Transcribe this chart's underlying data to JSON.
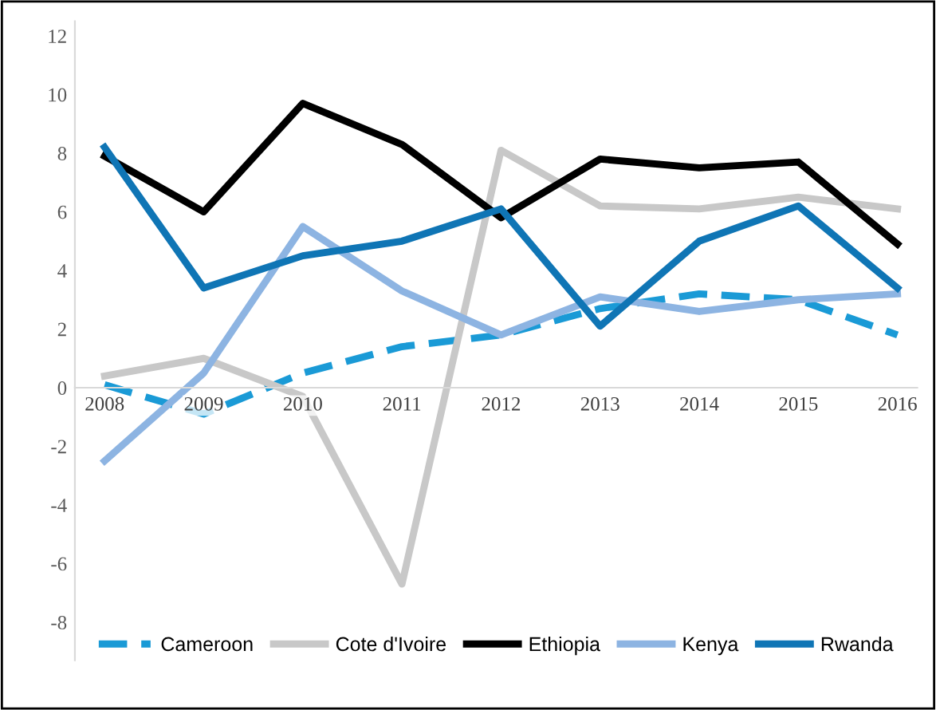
{
  "chart_data": {
    "type": "line",
    "categories": [
      "2008",
      "2009",
      "2010",
      "2011",
      "2012",
      "2013",
      "2014",
      "2015",
      "2016"
    ],
    "ylim": [
      -9.3,
      12.5
    ],
    "yticks": [
      -8,
      -6,
      -4,
      -2,
      0,
      2,
      4,
      6,
      8,
      10,
      12
    ],
    "grid": false,
    "legend": "bottom",
    "marker": "none",
    "series": [
      {
        "name": "Cameroon",
        "color": "#1a9ad6",
        "line_style": "dashed",
        "values": [
          0.1,
          -0.9,
          0.5,
          1.4,
          1.8,
          2.7,
          3.2,
          3.0,
          1.8
        ]
      },
      {
        "name": "Cote d'Ivoire",
        "color": "#c8c8c8",
        "values": [
          0.4,
          1.0,
          -0.3,
          -6.7,
          8.1,
          6.2,
          6.1,
          6.5,
          6.1
        ]
      },
      {
        "name": "Ethiopia",
        "color": "#000000",
        "values": [
          7.9,
          6.0,
          9.7,
          8.3,
          5.8,
          7.8,
          7.5,
          7.7,
          4.9
        ]
      },
      {
        "name": "Kenya",
        "color": "#8db4e2",
        "values": [
          -2.5,
          0.5,
          5.5,
          3.3,
          1.8,
          3.1,
          2.6,
          3.0,
          3.2
        ]
      },
      {
        "name": "Rwanda",
        "color": "#0f75b5",
        "values": [
          8.2,
          3.4,
          4.5,
          5.0,
          6.1,
          2.1,
          5.0,
          6.2,
          3.4
        ]
      }
    ]
  }
}
